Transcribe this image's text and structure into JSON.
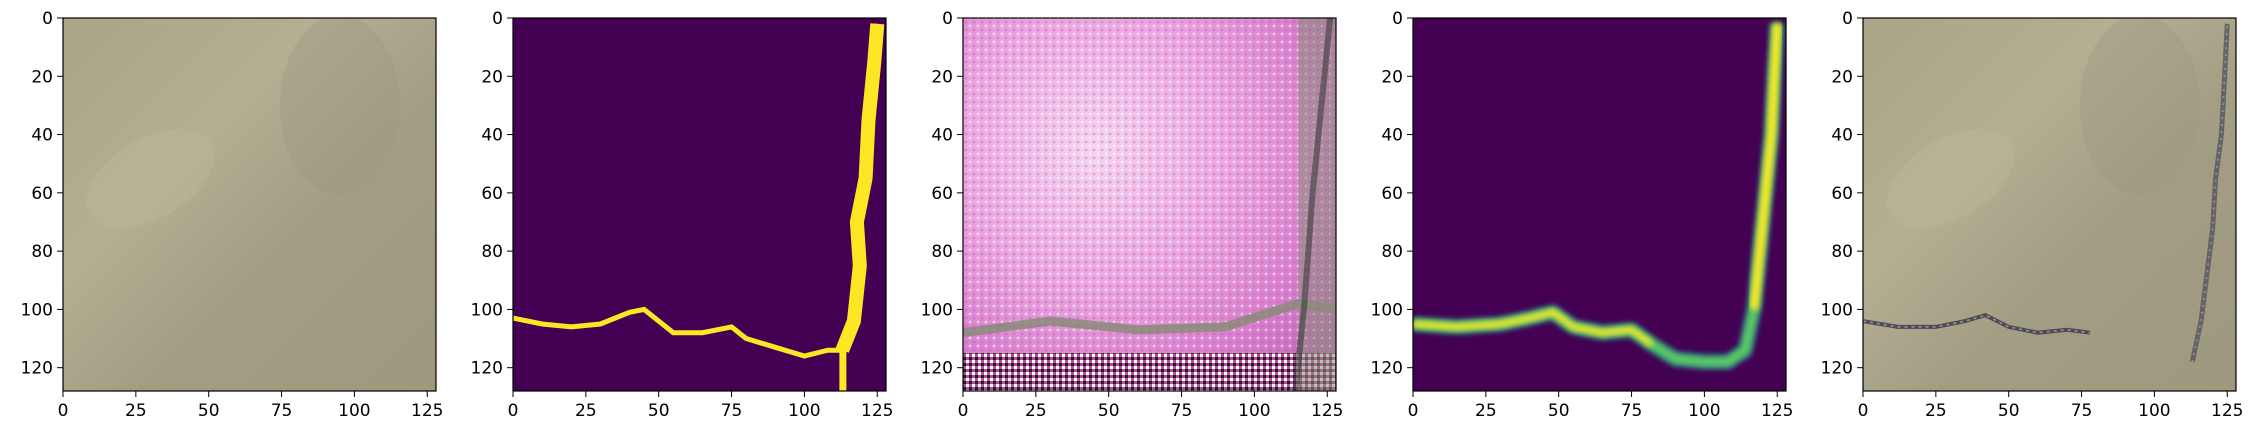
{
  "chart_data": [
    {
      "type": "image",
      "panel": 1,
      "content": "satellite RGB image, sandy/olive-beige terrain",
      "colors": [
        "#a8a286",
        "#b2ac90",
        "#9f9a80"
      ],
      "xlim": [
        0,
        128
      ],
      "ylim": [
        128,
        0
      ],
      "xticks": [
        0,
        25,
        50,
        75,
        100,
        125
      ],
      "yticks": [
        0,
        20,
        40,
        60,
        80,
        100,
        120
      ],
      "xlabel": "",
      "ylabel": "",
      "grid": false
    },
    {
      "type": "image",
      "panel": 2,
      "content": "binary mask, viridis colormap; yellow river pixels on purple background",
      "colors": [
        "#440154",
        "#fde725"
      ],
      "river_path": [
        [
          0,
          103
        ],
        [
          10,
          105
        ],
        [
          20,
          106
        ],
        [
          30,
          105
        ],
        [
          40,
          101
        ],
        [
          45,
          100
        ],
        [
          55,
          108
        ],
        [
          65,
          108
        ],
        [
          75,
          106
        ],
        [
          80,
          110
        ],
        [
          90,
          113
        ],
        [
          100,
          116
        ],
        [
          108,
          114
        ],
        [
          113,
          114
        ],
        [
          117,
          104
        ],
        [
          119,
          85
        ],
        [
          118,
          70
        ],
        [
          121,
          55
        ],
        [
          122,
          35
        ],
        [
          124,
          15
        ],
        [
          125,
          2
        ]
      ],
      "xlim": [
        0,
        128
      ],
      "ylim": [
        128,
        0
      ],
      "xticks": [
        0,
        25,
        50,
        75,
        100,
        125
      ],
      "yticks": [
        0,
        20,
        40,
        60,
        80,
        100,
        120
      ],
      "xlabel": "",
      "ylabel": "",
      "grid": false
    },
    {
      "type": "image",
      "panel": 3,
      "content": "generated texture, pink/magenta with noisy band at bottom",
      "colors": [
        "#f2c8ee",
        "#e58fda",
        "#cc66bb",
        "#8a8a7a",
        "#ff66cc"
      ],
      "xlim": [
        0,
        128
      ],
      "ylim": [
        128,
        0
      ],
      "xticks": [
        0,
        25,
        50,
        75,
        100,
        125
      ],
      "yticks": [
        0,
        20,
        40,
        60,
        80,
        100,
        120
      ],
      "xlabel": "",
      "ylabel": "",
      "grid": false
    },
    {
      "type": "image",
      "panel": 4,
      "content": "predicted probability map, viridis colormap; blurred river",
      "colors": [
        "#440154",
        "#21918c",
        "#5ec962",
        "#fde725"
      ],
      "river_path": [
        [
          0,
          105
        ],
        [
          15,
          106
        ],
        [
          30,
          105
        ],
        [
          40,
          103
        ],
        [
          48,
          101
        ],
        [
          55,
          106
        ],
        [
          65,
          108
        ],
        [
          75,
          107
        ],
        [
          82,
          112
        ],
        [
          90,
          117
        ],
        [
          100,
          118
        ],
        [
          108,
          118
        ],
        [
          114,
          114
        ],
        [
          117,
          100
        ],
        [
          119,
          80
        ],
        [
          121,
          60
        ],
        [
          123,
          40
        ],
        [
          124,
          20
        ],
        [
          125,
          2
        ]
      ],
      "xlim": [
        0,
        128
      ],
      "ylim": [
        128,
        0
      ],
      "xticks": [
        0,
        25,
        50,
        75,
        100,
        125
      ],
      "yticks": [
        0,
        20,
        40,
        60,
        80,
        100,
        120
      ],
      "xlabel": "",
      "ylabel": "",
      "grid": false
    },
    {
      "type": "image",
      "panel": 5,
      "content": "satellite RGB image with dark river overlay",
      "colors": [
        "#a8a286",
        "#b2ac90",
        "#3c3c46",
        "#8c8ca0"
      ],
      "river_path": [
        [
          0,
          104
        ],
        [
          12,
          106
        ],
        [
          25,
          106
        ],
        [
          35,
          104
        ],
        [
          42,
          102
        ],
        [
          50,
          106
        ],
        [
          60,
          108
        ],
        [
          70,
          107
        ],
        [
          78,
          108
        ]
      ],
      "river_path_2": [
        [
          113,
          118
        ],
        [
          116,
          104
        ],
        [
          118,
          88
        ],
        [
          120,
          72
        ],
        [
          121,
          55
        ],
        [
          123,
          40
        ],
        [
          124,
          22
        ],
        [
          125,
          2
        ]
      ],
      "xlim": [
        0,
        128
      ],
      "ylim": [
        128,
        0
      ],
      "xticks": [
        0,
        25,
        50,
        75,
        100,
        125
      ],
      "yticks": [
        0,
        20,
        40,
        60,
        80,
        100,
        120
      ],
      "xlabel": "",
      "ylabel": "",
      "grid": false
    }
  ]
}
